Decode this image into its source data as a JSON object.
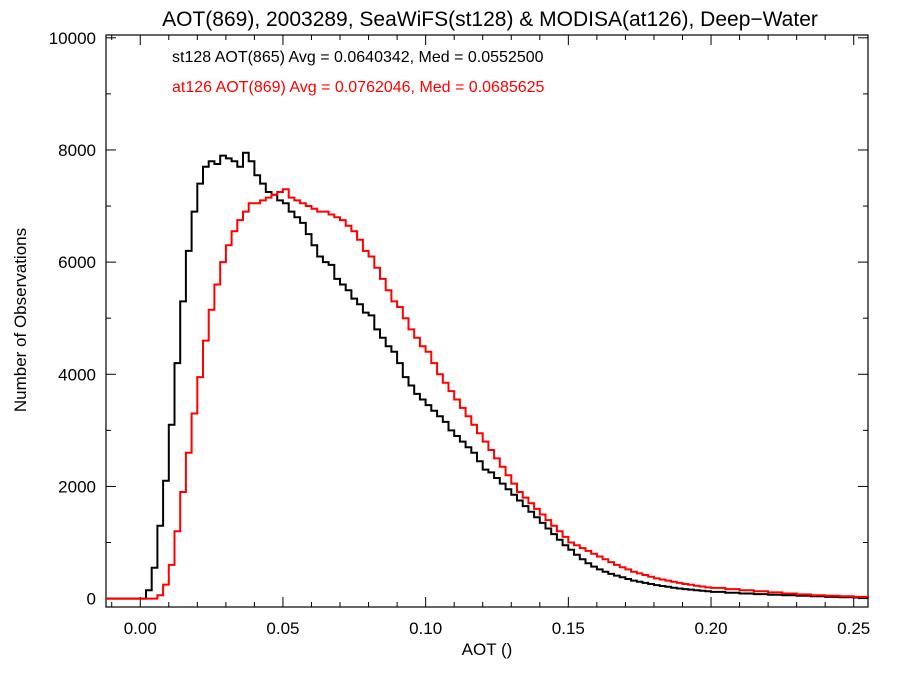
{
  "chart_data": {
    "type": "line",
    "step": true,
    "title": "AOT(869), 2003289, SeaWiFS(st128) & MODISA(at126), Deep−Water",
    "xlabel": "AOT ()",
    "ylabel": "Number of Observations",
    "xlim": [
      -0.012,
      0.255
    ],
    "ylim": [
      -150,
      10050
    ],
    "x_ticks": [
      0.0,
      0.05,
      0.1,
      0.15,
      0.2,
      0.25
    ],
    "x_tick_labels": [
      "0.00",
      "0.05",
      "0.10",
      "0.15",
      "0.20",
      "0.25"
    ],
    "y_ticks": [
      0,
      2000,
      4000,
      6000,
      8000,
      10000
    ],
    "y_tick_labels": [
      "0",
      "2000",
      "4000",
      "6000",
      "8000",
      "10000"
    ],
    "grid": false,
    "legend_placement": "top-left",
    "series": [
      {
        "name": "st128 AOT(865) Avg = 0.0640342, Med = 0.0552500",
        "color": "#000000",
        "x": [
          -0.012,
          0.0,
          0.002,
          0.004,
          0.006,
          0.008,
          0.01,
          0.012,
          0.014,
          0.016,
          0.018,
          0.02,
          0.022,
          0.024,
          0.026,
          0.028,
          0.03,
          0.032,
          0.034,
          0.036,
          0.038,
          0.04,
          0.042,
          0.044,
          0.046,
          0.048,
          0.05,
          0.052,
          0.054,
          0.056,
          0.058,
          0.06,
          0.062,
          0.064,
          0.066,
          0.068,
          0.07,
          0.072,
          0.074,
          0.076,
          0.078,
          0.08,
          0.082,
          0.084,
          0.086,
          0.088,
          0.09,
          0.092,
          0.094,
          0.096,
          0.098,
          0.1,
          0.102,
          0.104,
          0.106,
          0.108,
          0.11,
          0.112,
          0.114,
          0.116,
          0.118,
          0.12,
          0.122,
          0.124,
          0.126,
          0.128,
          0.13,
          0.132,
          0.134,
          0.136,
          0.138,
          0.14,
          0.142,
          0.144,
          0.146,
          0.148,
          0.15,
          0.152,
          0.154,
          0.156,
          0.158,
          0.16,
          0.162,
          0.164,
          0.166,
          0.168,
          0.17,
          0.172,
          0.174,
          0.176,
          0.178,
          0.18,
          0.182,
          0.184,
          0.186,
          0.188,
          0.19,
          0.192,
          0.194,
          0.196,
          0.198,
          0.2,
          0.205,
          0.21,
          0.215,
          0.22,
          0.225,
          0.23,
          0.235,
          0.24,
          0.245,
          0.25,
          0.255
        ],
        "values": [
          0,
          0,
          150,
          550,
          1300,
          2100,
          3100,
          4200,
          5300,
          6200,
          6900,
          7400,
          7700,
          7800,
          7750,
          7900,
          7850,
          7800,
          7700,
          7950,
          7800,
          7550,
          7400,
          7250,
          7200,
          7100,
          7050,
          6900,
          6800,
          6700,
          6500,
          6300,
          6100,
          6000,
          5950,
          5700,
          5600,
          5500,
          5350,
          5250,
          5100,
          5050,
          4800,
          4650,
          4500,
          4400,
          4200,
          3950,
          3800,
          3650,
          3550,
          3450,
          3350,
          3250,
          3150,
          3000,
          2900,
          2800,
          2700,
          2600,
          2450,
          2300,
          2250,
          2150,
          2050,
          1950,
          1850,
          1750,
          1650,
          1550,
          1450,
          1350,
          1250,
          1150,
          1050,
          950,
          870,
          780,
          700,
          630,
          570,
          520,
          480,
          440,
          410,
          380,
          350,
          320,
          300,
          280,
          260,
          240,
          225,
          210,
          195,
          180,
          170,
          160,
          150,
          140,
          130,
          120,
          105,
          90,
          80,
          70,
          60,
          50,
          40,
          30,
          25,
          20,
          15
        ]
      },
      {
        "name": "at126 AOT(869) Avg = 0.0762046, Med = 0.0685625",
        "color": "#ff0000",
        "x": [
          -0.012,
          0.0,
          0.004,
          0.006,
          0.008,
          0.01,
          0.012,
          0.014,
          0.016,
          0.018,
          0.02,
          0.022,
          0.024,
          0.026,
          0.028,
          0.03,
          0.032,
          0.034,
          0.036,
          0.038,
          0.04,
          0.042,
          0.044,
          0.046,
          0.048,
          0.05,
          0.052,
          0.054,
          0.056,
          0.058,
          0.06,
          0.062,
          0.064,
          0.066,
          0.068,
          0.07,
          0.072,
          0.074,
          0.076,
          0.078,
          0.08,
          0.082,
          0.084,
          0.086,
          0.088,
          0.09,
          0.092,
          0.094,
          0.096,
          0.098,
          0.1,
          0.102,
          0.104,
          0.106,
          0.108,
          0.11,
          0.112,
          0.114,
          0.116,
          0.118,
          0.12,
          0.122,
          0.124,
          0.126,
          0.128,
          0.13,
          0.132,
          0.134,
          0.136,
          0.138,
          0.14,
          0.142,
          0.144,
          0.146,
          0.148,
          0.15,
          0.152,
          0.154,
          0.156,
          0.158,
          0.16,
          0.162,
          0.164,
          0.166,
          0.168,
          0.17,
          0.172,
          0.174,
          0.176,
          0.178,
          0.18,
          0.182,
          0.184,
          0.186,
          0.188,
          0.19,
          0.192,
          0.194,
          0.196,
          0.198,
          0.2,
          0.205,
          0.21,
          0.215,
          0.22,
          0.225,
          0.23,
          0.235,
          0.24,
          0.245,
          0.25,
          0.255
        ],
        "values": [
          0,
          0,
          0,
          60,
          250,
          600,
          1200,
          1900,
          2600,
          3300,
          3950,
          4600,
          5150,
          5600,
          6000,
          6300,
          6550,
          6750,
          6900,
          7050,
          7050,
          7100,
          7150,
          7200,
          7250,
          7300,
          7150,
          7100,
          7050,
          7000,
          6950,
          6900,
          6900,
          6850,
          6800,
          6750,
          6650,
          6550,
          6400,
          6200,
          6100,
          5900,
          5700,
          5500,
          5300,
          5200,
          5000,
          4800,
          4650,
          4500,
          4400,
          4200,
          4000,
          3850,
          3700,
          3550,
          3400,
          3250,
          3100,
          2950,
          2800,
          2650,
          2500,
          2350,
          2200,
          2050,
          1900,
          1800,
          1700,
          1600,
          1500,
          1400,
          1300,
          1200,
          1100,
          1000,
          950,
          900,
          850,
          800,
          750,
          700,
          650,
          600,
          560,
          520,
          480,
          450,
          420,
          390,
          360,
          340,
          320,
          300,
          280,
          260,
          245,
          230,
          215,
          200,
          190,
          170,
          150,
          130,
          110,
          90,
          75,
          60,
          50,
          40,
          30,
          25
        ]
      }
    ]
  }
}
